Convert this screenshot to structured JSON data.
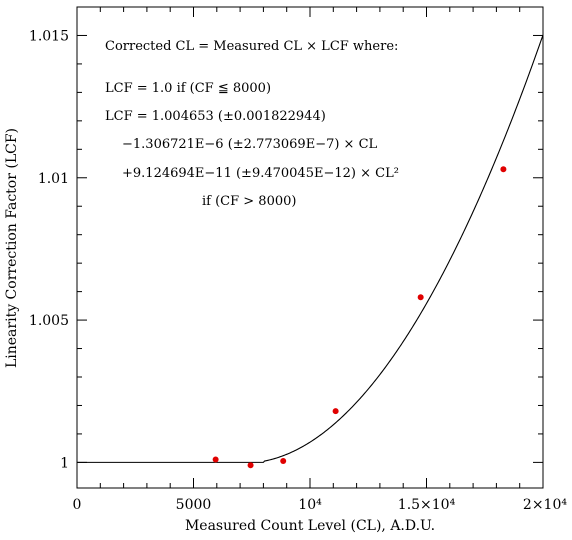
{
  "chart_data": {
    "type": "scatter",
    "xlabel": "Measured Count Level (CL), A.D.U.",
    "ylabel": "Linearity Correction Factor (LCF)",
    "xlim": [
      0,
      20000
    ],
    "ylim": [
      0.9991,
      1.016
    ],
    "x_ticks": [
      {
        "value": 0,
        "label": "0"
      },
      {
        "value": 5000,
        "label": "5000"
      },
      {
        "value": 10000,
        "label": "10⁴"
      },
      {
        "value": 15000,
        "label": "1.5×10⁴"
      },
      {
        "value": 20000,
        "label": "2×10⁴"
      }
    ],
    "y_ticks": [
      {
        "value": 1.0,
        "label": "1"
      },
      {
        "value": 1.005,
        "label": "1.005"
      },
      {
        "value": 1.01,
        "label": "1.01"
      },
      {
        "value": 1.015,
        "label": "1.015"
      }
    ],
    "points": {
      "x": [
        5950,
        7450,
        8850,
        11100,
        14750,
        18300
      ],
      "y": [
        1.0001,
        0.9999,
        1.00005,
        1.0018,
        1.0058,
        1.0103
      ],
      "color": "#e00000"
    },
    "fit_curve": {
      "threshold": 8000,
      "base": 1.0,
      "c0": 1.004653,
      "c1": -1.306721e-06,
      "c2": 9.124694e-11,
      "color": "#000000"
    },
    "annotations": [
      "Corrected CL = Measured CL × LCF  where:",
      "LCF = 1.0    if (CF ≦  8000)",
      "LCF = 1.004653 (±0.001822944)",
      "−1.306721E−6 (±2.773069E−7) × CL",
      "+9.124694E−11 (±9.470045E−12) × CL²",
      "if (CF > 8000)"
    ],
    "grid": false,
    "legend": "none"
  }
}
